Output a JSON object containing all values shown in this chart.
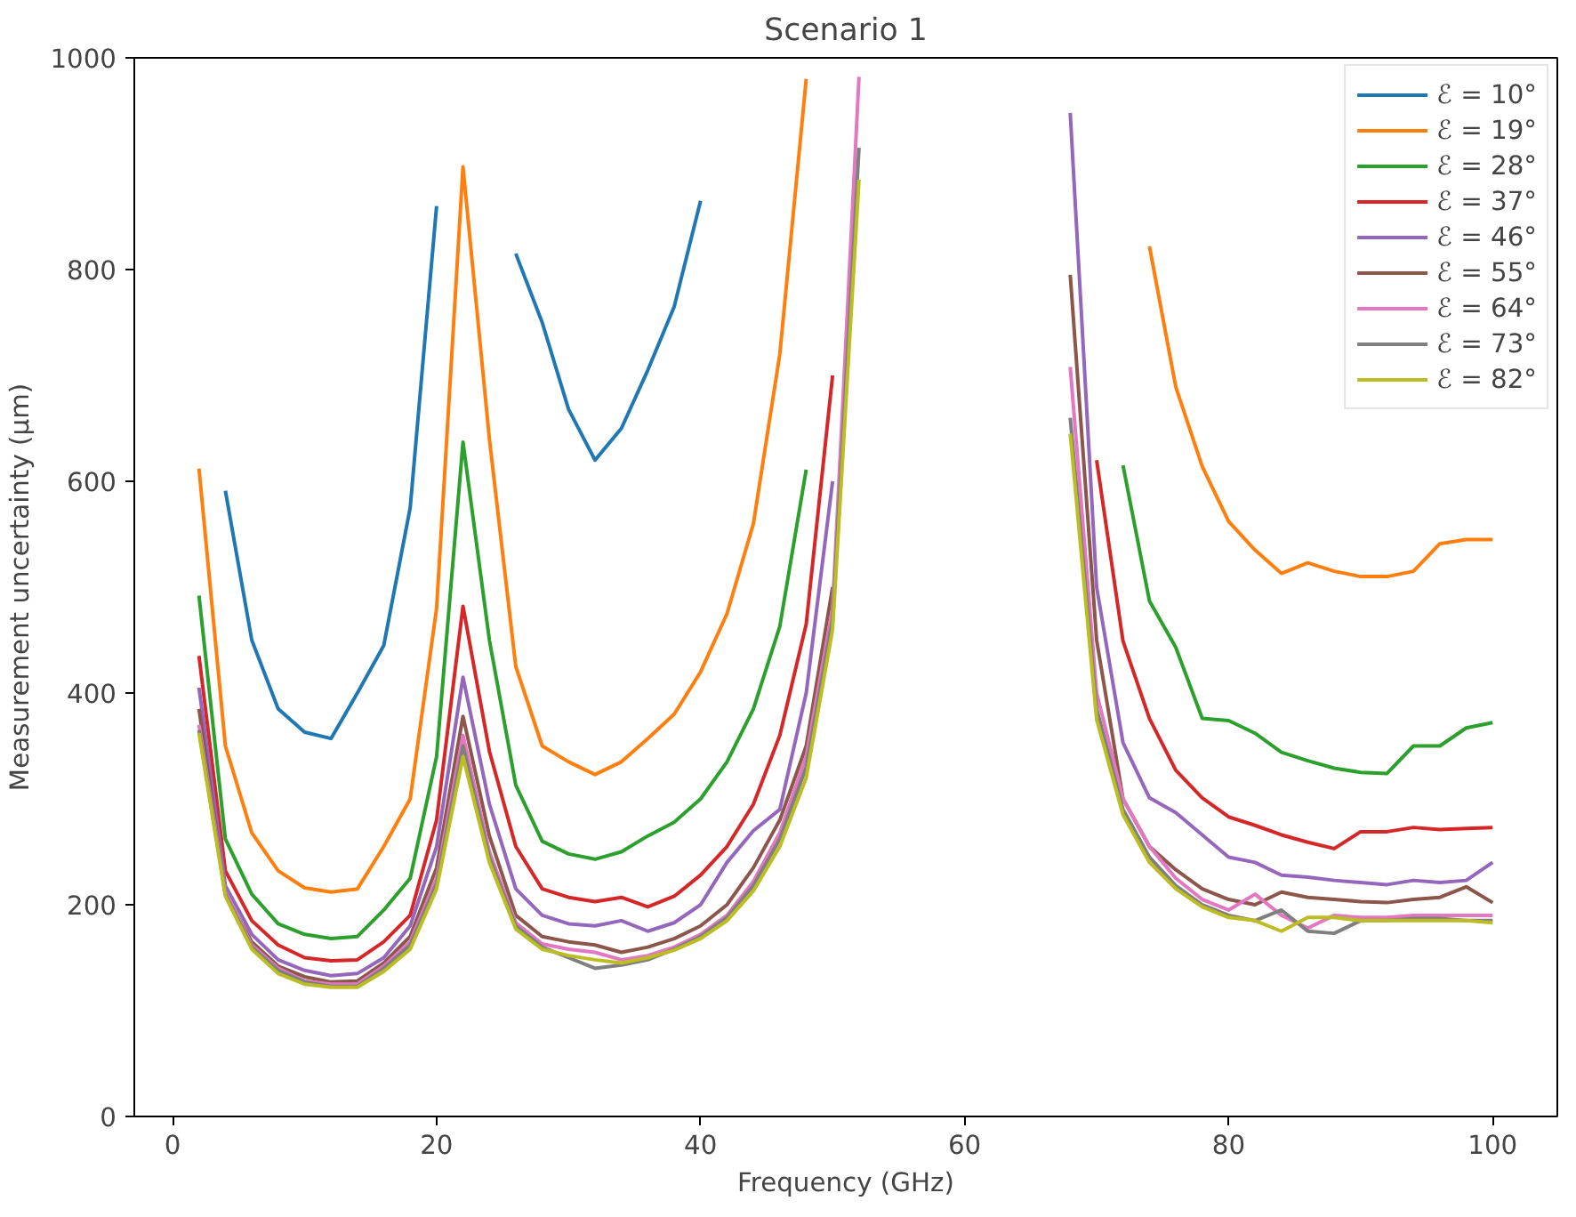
{
  "chart_data": {
    "type": "line",
    "title": "Scenario 1",
    "xlabel": "Frequency (GHz)",
    "ylabel": "Measurement uncertainty (μm)",
    "x": [
      2,
      4,
      6,
      8,
      10,
      12,
      14,
      16,
      18,
      20,
      22,
      24,
      26,
      28,
      30,
      32,
      34,
      36,
      38,
      40,
      42,
      44,
      46,
      48,
      50,
      52,
      54,
      56,
      58,
      60,
      62,
      64,
      66,
      68,
      70,
      72,
      74,
      76,
      78,
      80,
      82,
      84,
      86,
      88,
      90,
      92,
      94,
      96,
      98,
      100
    ],
    "xlim": [
      -2.9,
      104.9
    ],
    "ylim": [
      0,
      1000
    ],
    "xticks": [
      0,
      20,
      40,
      60,
      80,
      100
    ],
    "yticks": [
      0,
      200,
      400,
      600,
      800,
      1000
    ],
    "grid": false,
    "legend": "top right",
    "line_style": "solid",
    "marker": "none",
    "series": [
      {
        "name": "ℰ = 10°",
        "color": "#1f77b4",
        "values": [
          null,
          591,
          450,
          385,
          363,
          357,
          400,
          445,
          575,
          860,
          null,
          null,
          815,
          750,
          668,
          620,
          650,
          705,
          765,
          865,
          null,
          null,
          null,
          null,
          null,
          null,
          null,
          null,
          null,
          null,
          null,
          null,
          null,
          null,
          null,
          null,
          null,
          null,
          null,
          null,
          null,
          null,
          null,
          null,
          null,
          null,
          null,
          null,
          null,
          null
        ]
      },
      {
        "name": "ℰ = 19°",
        "color": "#ff7f0e",
        "values": [
          612,
          350,
          268,
          232,
          216,
          212,
          215,
          255,
          300,
          480,
          897,
          640,
          425,
          350,
          335,
          323,
          335,
          357,
          380,
          420,
          475,
          560,
          720,
          980,
          null,
          null,
          null,
          null,
          null,
          null,
          null,
          null,
          null,
          null,
          null,
          null,
          822,
          689,
          614,
          562,
          535,
          513,
          523,
          515,
          510,
          510,
          515,
          541,
          545,
          545
        ]
      },
      {
        "name": "ℰ = 28°",
        "color": "#2ca02c",
        "values": [
          492,
          262,
          210,
          182,
          172,
          168,
          170,
          195,
          225,
          340,
          637,
          450,
          313,
          260,
          248,
          243,
          250,
          265,
          278,
          300,
          335,
          385,
          463,
          611,
          null,
          null,
          null,
          null,
          null,
          null,
          null,
          null,
          null,
          null,
          null,
          615,
          487,
          443,
          376,
          374,
          362,
          344,
          336,
          329,
          325,
          324,
          350,
          350,
          367,
          372
        ]
      },
      {
        "name": "ℰ = 37°",
        "color": "#d62728",
        "values": [
          435,
          232,
          185,
          162,
          150,
          147,
          148,
          165,
          190,
          280,
          482,
          345,
          255,
          215,
          207,
          203,
          207,
          198,
          208,
          228,
          255,
          295,
          360,
          465,
          700,
          null,
          null,
          null,
          null,
          null,
          null,
          null,
          null,
          null,
          620,
          449,
          376,
          327,
          301,
          283,
          275,
          266,
          259,
          253,
          269,
          269,
          273,
          271,
          272,
          273
        ]
      },
      {
        "name": "ℰ = 46°",
        "color": "#9467bd",
        "values": [
          405,
          218,
          172,
          148,
          138,
          133,
          135,
          150,
          180,
          255,
          415,
          295,
          215,
          190,
          182,
          180,
          185,
          175,
          183,
          200,
          240,
          270,
          290,
          400,
          600,
          null,
          null,
          null,
          null,
          null,
          null,
          null,
          null,
          948,
          500,
          353,
          301,
          287,
          266,
          245,
          240,
          228,
          226,
          223,
          221,
          219,
          223,
          221,
          223,
          240
        ]
      },
      {
        "name": "ℰ = 55°",
        "color": "#8c564b",
        "values": [
          385,
          210,
          165,
          142,
          132,
          127,
          128,
          145,
          170,
          235,
          378,
          265,
          190,
          170,
          165,
          162,
          155,
          160,
          168,
          180,
          200,
          235,
          280,
          350,
          500,
          null,
          null,
          null,
          null,
          null,
          null,
          null,
          null,
          795,
          450,
          300,
          255,
          233,
          215,
          205,
          200,
          212,
          207,
          205,
          203,
          202,
          205,
          207,
          217,
          202
        ]
      },
      {
        "name": "ℰ = 64°",
        "color": "#e377c2",
        "values": [
          370,
          212,
          162,
          140,
          128,
          125,
          125,
          142,
          165,
          225,
          360,
          250,
          183,
          163,
          158,
          155,
          148,
          152,
          160,
          172,
          190,
          222,
          268,
          340,
          480,
          982,
          null,
          null,
          null,
          null,
          null,
          null,
          null,
          708,
          400,
          300,
          255,
          225,
          205,
          195,
          210,
          190,
          178,
          190,
          188,
          188,
          190,
          190,
          190,
          190
        ]
      },
      {
        "name": "ℰ = 73°",
        "color": "#7f7f7f",
        "values": [
          365,
          210,
          160,
          138,
          127,
          123,
          123,
          140,
          162,
          220,
          350,
          245,
          180,
          160,
          150,
          140,
          143,
          148,
          158,
          170,
          188,
          218,
          262,
          330,
          470,
          915,
          null,
          null,
          null,
          null,
          null,
          null,
          null,
          660,
          385,
          290,
          245,
          218,
          200,
          190,
          185,
          195,
          175,
          173,
          185,
          185,
          187,
          187,
          185,
          185
        ]
      },
      {
        "name": "ℰ = 82°",
        "color": "#bcbd22",
        "values": [
          362,
          208,
          158,
          135,
          125,
          122,
          122,
          137,
          158,
          215,
          340,
          240,
          177,
          158,
          152,
          148,
          145,
          150,
          157,
          168,
          185,
          213,
          255,
          320,
          460,
          885,
          null,
          null,
          null,
          null,
          null,
          null,
          null,
          645,
          375,
          285,
          240,
          215,
          198,
          188,
          185,
          175,
          188,
          188,
          185,
          185,
          185,
          185,
          185,
          183
        ]
      }
    ]
  }
}
